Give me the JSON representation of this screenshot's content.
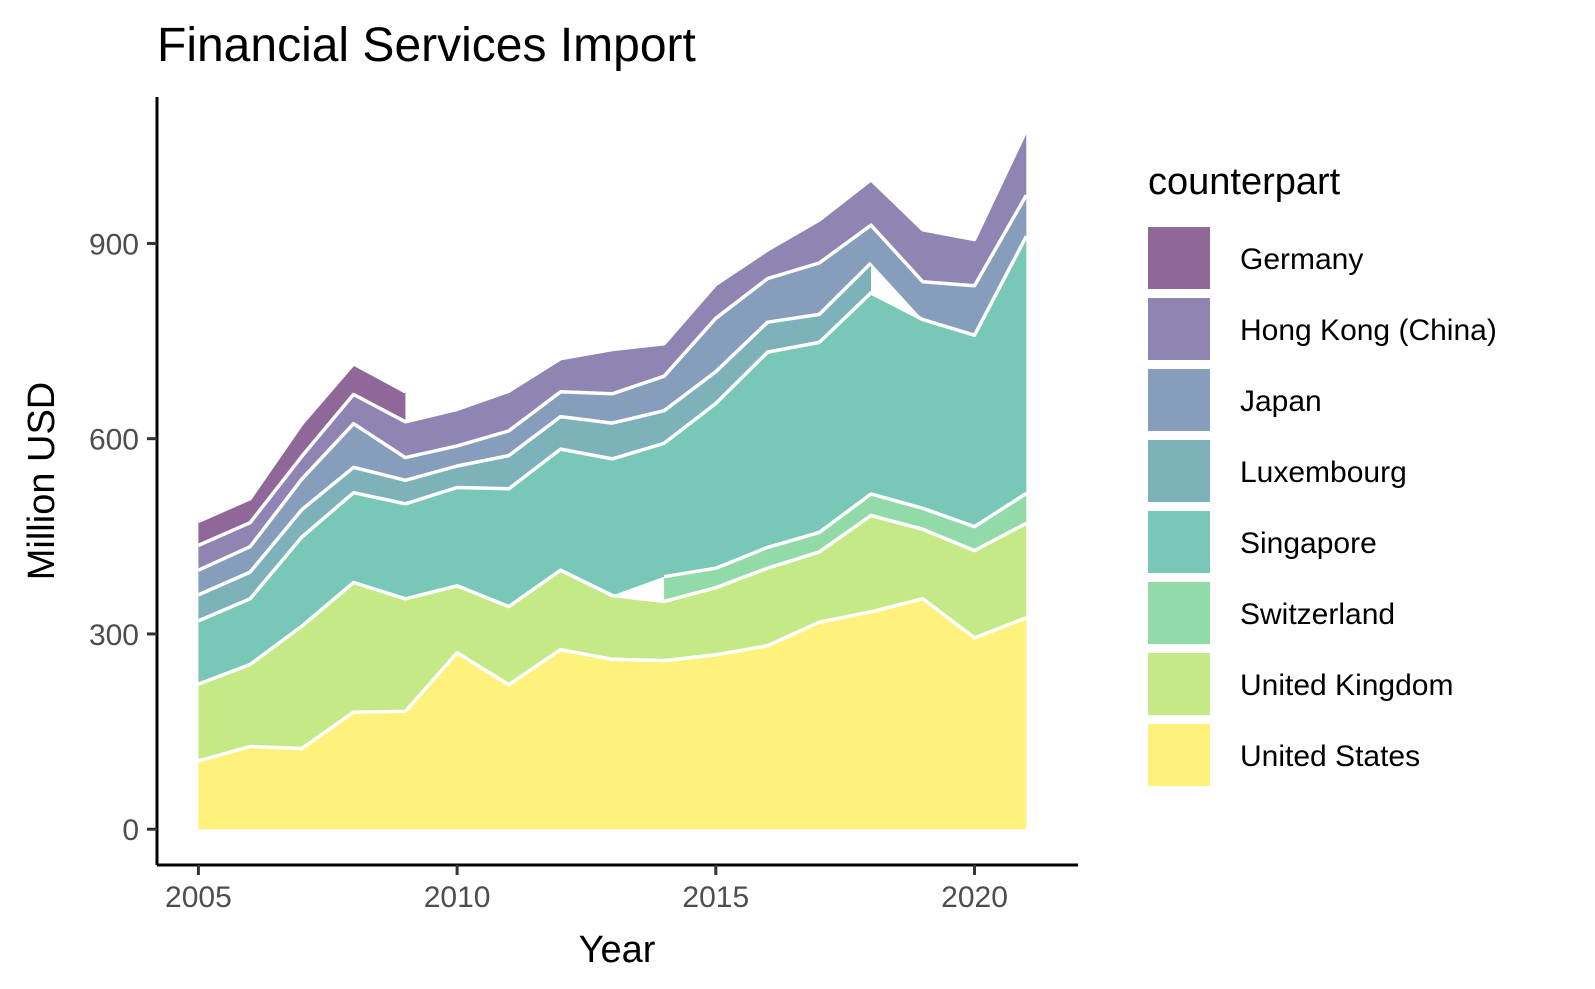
{
  "chart_data": {
    "type": "area",
    "stacked": true,
    "title": "Financial Services Import",
    "xlabel": "Year",
    "ylabel": "Million USD",
    "xlim": [
      2004.2,
      2022.0
    ],
    "ylim": [
      -55,
      1125
    ],
    "x_ticks": [
      "2005",
      "2010",
      "2015",
      "2020"
    ],
    "y_ticks": [
      "0",
      "300",
      "600",
      "900"
    ],
    "grid": false,
    "legend": {
      "title": "counterpart",
      "position": "right"
    },
    "x": [
      2005,
      2006,
      2007,
      2008,
      2009,
      2010,
      2011,
      2012,
      2013,
      2014,
      2015,
      2016,
      2017,
      2018,
      2019,
      2020,
      2021
    ],
    "series": [
      {
        "name": "United States",
        "color": "#FDE725",
        "values": [
          105,
          127,
          124,
          180,
          181,
          271,
          222,
          276,
          261,
          259,
          268,
          282,
          318,
          334,
          354,
          294,
          325
        ]
      },
      {
        "name": "United Kingdom",
        "color": "#A0DA39",
        "values": [
          118,
          126,
          188,
          199,
          173,
          103,
          120,
          122,
          98,
          91,
          103,
          119,
          108,
          148,
          107,
          134,
          145
        ]
      },
      {
        "name": "Switzerland",
        "color": "#4AC16D",
        "values": [
          null,
          null,
          null,
          null,
          null,
          null,
          null,
          null,
          null,
          38,
          30,
          32,
          30,
          33,
          32,
          37,
          46
        ]
      },
      {
        "name": "Singapore",
        "color": "#1FA187",
        "values": [
          97,
          101,
          137,
          138,
          146,
          151,
          181,
          186,
          210,
          205,
          253,
          300,
          292,
          309,
          290,
          294,
          395
        ]
      },
      {
        "name": "Luxembourg",
        "color": "#277F8E",
        "values": [
          40,
          41,
          42,
          39,
          36,
          33,
          51,
          50,
          55,
          50,
          49,
          46,
          43,
          46,
          null,
          null,
          null
        ]
      },
      {
        "name": "Japan",
        "color": "#365C8D",
        "values": [
          38,
          39,
          47,
          67,
          35,
          31,
          38,
          38,
          45,
          53,
          82,
          67,
          79,
          58,
          58,
          76,
          63
        ]
      },
      {
        "name": "Hong Kong (China)",
        "color": "#46327E",
        "values": [
          38,
          37,
          35,
          45,
          55,
          56,
          61,
          51,
          68,
          50,
          52,
          44,
          66,
          70,
          80,
          71,
          100
        ]
      },
      {
        "name": "Germany",
        "color": "#440154",
        "values": [
          37,
          37,
          50,
          47,
          46,
          null,
          null,
          null,
          null,
          null,
          null,
          null,
          null,
          null,
          null,
          null,
          null
        ]
      }
    ]
  }
}
